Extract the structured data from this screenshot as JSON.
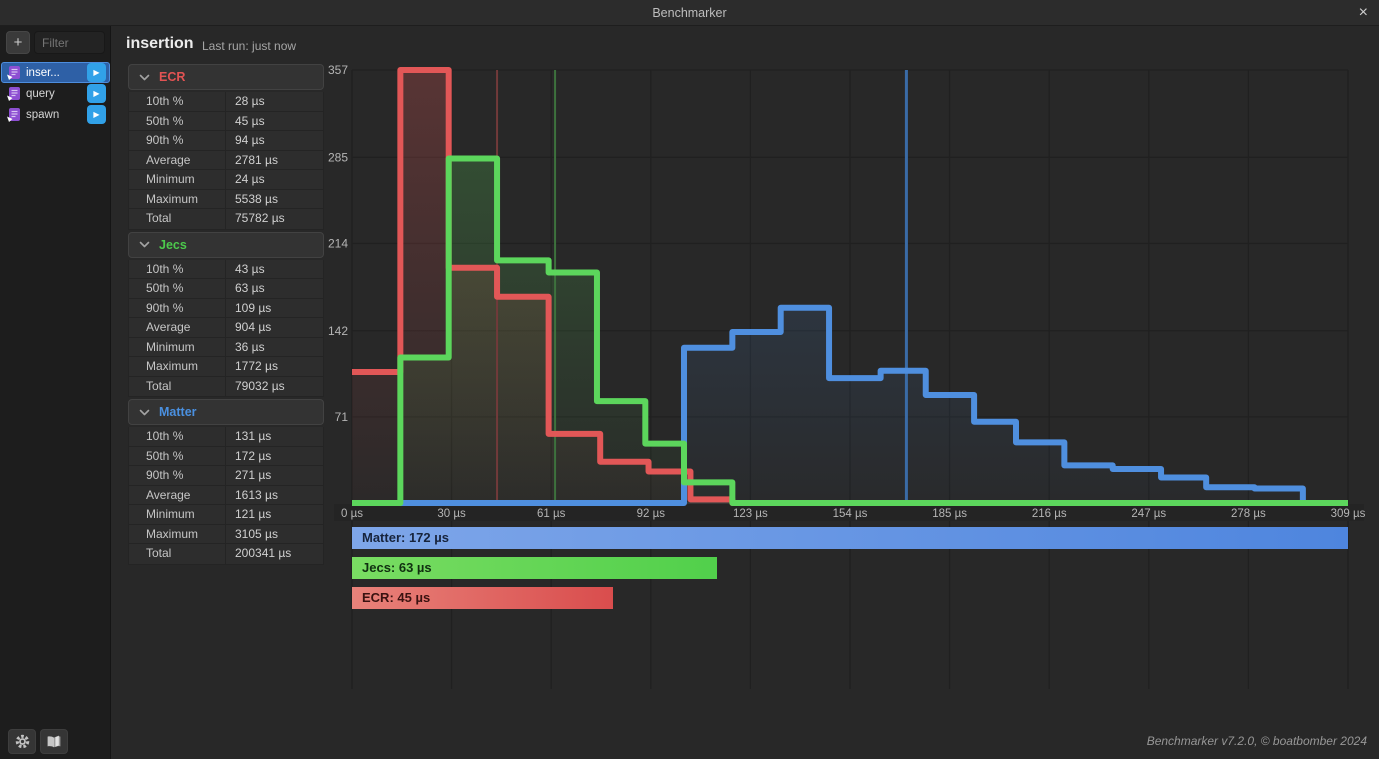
{
  "window": {
    "title": "Benchmarker"
  },
  "icons": {
    "close": "×",
    "plus": "+",
    "play": "▶",
    "gear": "gear-icon",
    "book": "docs-book-icon",
    "chevron": "chevron-down"
  },
  "sidebar": {
    "filter_placeholder": "Filter",
    "items": [
      {
        "label": "inser...",
        "selected": true
      },
      {
        "label": "query",
        "selected": false
      },
      {
        "label": "spawn",
        "selected": false
      }
    ]
  },
  "header": {
    "benchmark_name": "insertion",
    "last_run": "Last run: just now"
  },
  "stats": {
    "row_labels": [
      "10th %",
      "50th %",
      "90th %",
      "Average",
      "Minimum",
      "Maximum",
      "Total"
    ],
    "sections": [
      {
        "name": "ECR",
        "color": "#e25353",
        "values": [
          "28 µs",
          "45 µs",
          "94 µs",
          "2781 µs",
          "24 µs",
          "5538 µs",
          "75782 µs"
        ]
      },
      {
        "name": "Jecs",
        "color": "#4cc94c",
        "values": [
          "43 µs",
          "63 µs",
          "109 µs",
          "904 µs",
          "36 µs",
          "1772 µs",
          "79032 µs"
        ]
      },
      {
        "name": "Matter",
        "color": "#4a90e0",
        "values": [
          "131 µs",
          "172 µs",
          "271 µs",
          "1613 µs",
          "121 µs",
          "3105 µs",
          "200341 µs"
        ]
      }
    ]
  },
  "chart_data": {
    "type": "area",
    "subtype": "step-histogram",
    "title": "",
    "xlabel": "",
    "ylabel": "",
    "x_unit": "µs",
    "x_max": 309,
    "y_max": 357,
    "ylim": [
      0,
      357
    ],
    "grid": true,
    "x_ticks": [
      "0 µs",
      "30 µs",
      "61 µs",
      "92 µs",
      "123 µs",
      "154 µs",
      "185 µs",
      "216 µs",
      "247 µs",
      "278 µs",
      "309 µs"
    ],
    "y_ticks": [
      357,
      285,
      214,
      142,
      71
    ],
    "series": [
      {
        "name": "ECR",
        "color": "#e25757",
        "median_us": 45,
        "median_line_color": "#713a3a",
        "steps": [
          [
            0,
            108
          ],
          [
            15,
            357
          ],
          [
            30,
            194
          ],
          [
            45,
            170
          ],
          [
            61,
            57
          ],
          [
            77,
            34
          ],
          [
            92,
            26
          ],
          [
            105,
            3
          ],
          [
            118,
            0
          ]
        ]
      },
      {
        "name": "Matter",
        "color": "#4f8fdf",
        "median_us": 172,
        "median_line_color": "#3a6ba6",
        "steps": [
          [
            0,
            0
          ],
          [
            103,
            128
          ],
          [
            118,
            141
          ],
          [
            133,
            161
          ],
          [
            148,
            103
          ],
          [
            164,
            109
          ],
          [
            178,
            89
          ],
          [
            193,
            67
          ],
          [
            206,
            50
          ],
          [
            221,
            31
          ],
          [
            236,
            28
          ],
          [
            251,
            21
          ],
          [
            265,
            13
          ],
          [
            280,
            12
          ],
          [
            295,
            0
          ]
        ]
      },
      {
        "name": "Jecs",
        "color": "#5cd65c",
        "median_us": 63,
        "median_line_color": "#3d713d",
        "steps": [
          [
            0,
            0
          ],
          [
            15,
            120
          ],
          [
            30,
            284
          ],
          [
            45,
            200
          ],
          [
            61,
            190
          ],
          [
            76,
            84
          ],
          [
            91,
            49
          ],
          [
            103,
            17
          ],
          [
            118,
            0
          ]
        ]
      }
    ],
    "bars": [
      {
        "name": "Matter",
        "label": "Matter: 172 µs",
        "median_us": 172,
        "color": "#4e85de",
        "color_light": "#7ea6e9",
        "text_color": "#17243c"
      },
      {
        "name": "Jecs",
        "label": "Jecs: 63 µs",
        "median_us": 63,
        "color": "#51d04b",
        "color_light": "#79dc62",
        "text_color": "#103010"
      },
      {
        "name": "ECR",
        "label": "ECR: 45 µs",
        "median_us": 45,
        "color": "#d94d4d",
        "color_light": "#e8827a",
        "text_color": "#3a1210"
      }
    ]
  },
  "footer": {
    "credit": "Benchmarker v7.2.0, © boatbomber 2024"
  }
}
